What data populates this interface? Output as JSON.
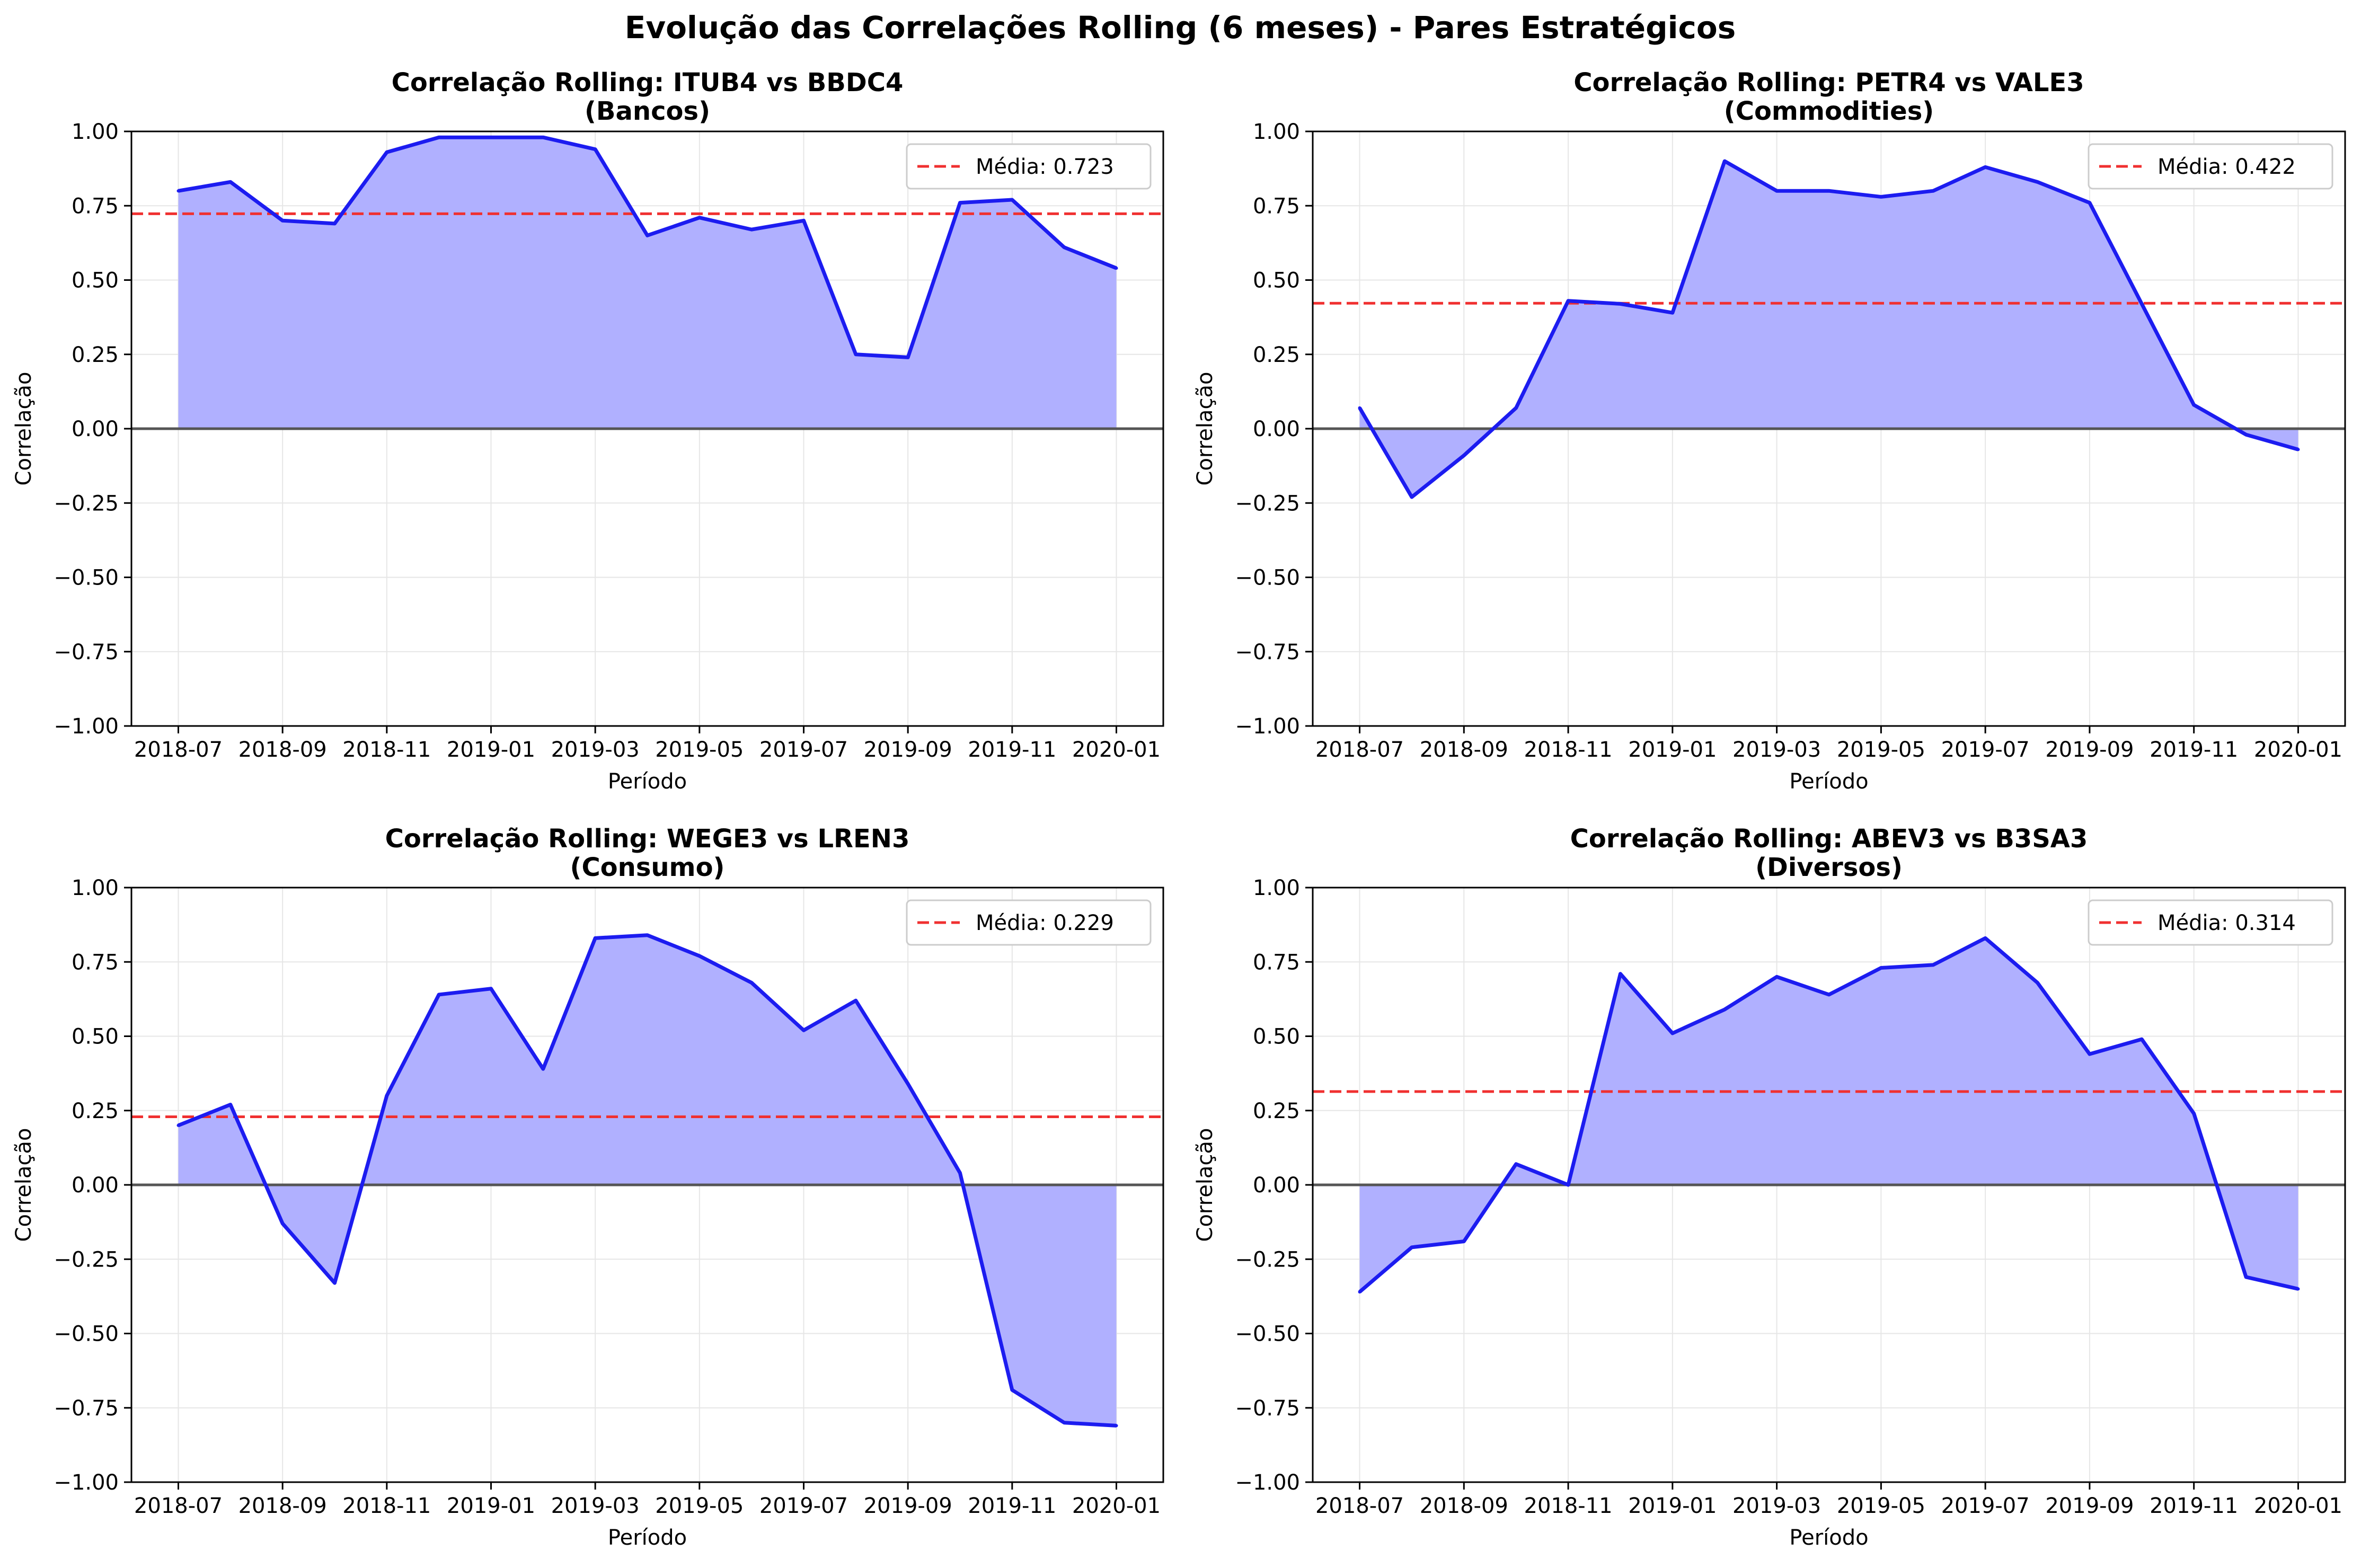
{
  "figure_title": "Evolução das Correlações Rolling (6 meses) - Pares Estratégicos",
  "colors": {
    "line": "#1c1cf0",
    "fill": "#b0b0ff",
    "mean_line": "#f03030",
    "zero_line": "#555555",
    "grid": "#e6e6e6"
  },
  "chart_data": [
    {
      "type": "area",
      "title_line1": "Correlação Rolling: ITUB4 vs BBDC4",
      "title_line2": "(Bancos)",
      "xlabel": "Período",
      "ylabel": "Correlação",
      "ylim": [
        -1.0,
        1.0
      ],
      "y_ticks": [
        "−1.00",
        "−0.75",
        "−0.50",
        "−0.25",
        "0.00",
        "0.25",
        "0.50",
        "0.75",
        "1.00"
      ],
      "x_ticks": [
        "2018-07",
        "2018-09",
        "2018-11",
        "2019-01",
        "2019-03",
        "2019-05",
        "2019-07",
        "2019-09",
        "2019-11",
        "2020-01"
      ],
      "grid": true,
      "legend_position": "upper right",
      "legend_label": "Média: 0.723",
      "mean": 0.723,
      "x": [
        "2018-07",
        "2018-08",
        "2018-09",
        "2018-10",
        "2018-11",
        "2018-12",
        "2019-01",
        "2019-02",
        "2019-03",
        "2019-04",
        "2019-05",
        "2019-06",
        "2019-07",
        "2019-08",
        "2019-09",
        "2019-10",
        "2019-11",
        "2019-12",
        "2020-01"
      ],
      "values": [
        0.8,
        0.83,
        0.7,
        0.69,
        0.93,
        0.98,
        0.98,
        0.98,
        0.94,
        0.65,
        0.71,
        0.67,
        0.7,
        0.25,
        0.24,
        0.76,
        0.77,
        0.61,
        0.54
      ]
    },
    {
      "type": "area",
      "title_line1": "Correlação Rolling: PETR4 vs VALE3",
      "title_line2": "(Commodities)",
      "xlabel": "Período",
      "ylabel": "Correlação",
      "ylim": [
        -1.0,
        1.0
      ],
      "y_ticks": [
        "−1.00",
        "−0.75",
        "−0.50",
        "−0.25",
        "0.00",
        "0.25",
        "0.50",
        "0.75",
        "1.00"
      ],
      "x_ticks": [
        "2018-07",
        "2018-09",
        "2018-11",
        "2019-01",
        "2019-03",
        "2019-05",
        "2019-07",
        "2019-09",
        "2019-11",
        "2020-01"
      ],
      "grid": true,
      "legend_position": "upper right",
      "legend_label": "Média: 0.422",
      "mean": 0.422,
      "x": [
        "2018-07",
        "2018-08",
        "2018-09",
        "2018-10",
        "2018-11",
        "2018-12",
        "2019-01",
        "2019-02",
        "2019-03",
        "2019-04",
        "2019-05",
        "2019-06",
        "2019-07",
        "2019-08",
        "2019-09",
        "2019-10",
        "2019-11",
        "2019-12",
        "2020-01"
      ],
      "values": [
        0.07,
        -0.23,
        -0.09,
        0.07,
        0.43,
        0.42,
        0.39,
        0.9,
        0.8,
        0.8,
        0.78,
        0.8,
        0.88,
        0.83,
        0.76,
        0.42,
        0.08,
        -0.02,
        -0.07
      ]
    },
    {
      "type": "area",
      "title_line1": "Correlação Rolling: WEGE3 vs LREN3",
      "title_line2": "(Consumo)",
      "xlabel": "Período",
      "ylabel": "Correlação",
      "ylim": [
        -1.0,
        1.0
      ],
      "y_ticks": [
        "−1.00",
        "−0.75",
        "−0.50",
        "−0.25",
        "0.00",
        "0.25",
        "0.50",
        "0.75",
        "1.00"
      ],
      "x_ticks": [
        "2018-07",
        "2018-09",
        "2018-11",
        "2019-01",
        "2019-03",
        "2019-05",
        "2019-07",
        "2019-09",
        "2019-11",
        "2020-01"
      ],
      "grid": true,
      "legend_position": "upper right",
      "legend_label": "Média: 0.229",
      "mean": 0.229,
      "x": [
        "2018-07",
        "2018-08",
        "2018-09",
        "2018-10",
        "2018-11",
        "2018-12",
        "2019-01",
        "2019-02",
        "2019-03",
        "2019-04",
        "2019-05",
        "2019-06",
        "2019-07",
        "2019-08",
        "2019-09",
        "2019-10",
        "2019-11",
        "2019-12",
        "2020-01"
      ],
      "values": [
        0.2,
        0.27,
        -0.13,
        -0.33,
        0.3,
        0.64,
        0.66,
        0.39,
        0.83,
        0.84,
        0.77,
        0.68,
        0.52,
        0.62,
        0.34,
        0.04,
        -0.69,
        -0.8,
        -0.81
      ]
    },
    {
      "type": "area",
      "title_line1": "Correlação Rolling: ABEV3 vs B3SA3",
      "title_line2": "(Diversos)",
      "xlabel": "Período",
      "ylabel": "Correlação",
      "ylim": [
        -1.0,
        1.0
      ],
      "y_ticks": [
        "−1.00",
        "−0.75",
        "−0.50",
        "−0.25",
        "0.00",
        "0.25",
        "0.50",
        "0.75",
        "1.00"
      ],
      "x_ticks": [
        "2018-07",
        "2018-09",
        "2018-11",
        "2019-01",
        "2019-03",
        "2019-05",
        "2019-07",
        "2019-09",
        "2019-11",
        "2020-01"
      ],
      "grid": true,
      "legend_position": "upper right",
      "legend_label": "Média: 0.314",
      "mean": 0.314,
      "x": [
        "2018-07",
        "2018-08",
        "2018-09",
        "2018-10",
        "2018-11",
        "2018-12",
        "2019-01",
        "2019-02",
        "2019-03",
        "2019-04",
        "2019-05",
        "2019-06",
        "2019-07",
        "2019-08",
        "2019-09",
        "2019-10",
        "2019-11",
        "2019-12",
        "2020-01"
      ],
      "values": [
        -0.36,
        -0.21,
        -0.19,
        0.07,
        0.0,
        0.71,
        0.51,
        0.59,
        0.7,
        0.64,
        0.73,
        0.74,
        0.83,
        0.68,
        0.44,
        0.49,
        0.24,
        -0.31,
        -0.35
      ]
    }
  ]
}
